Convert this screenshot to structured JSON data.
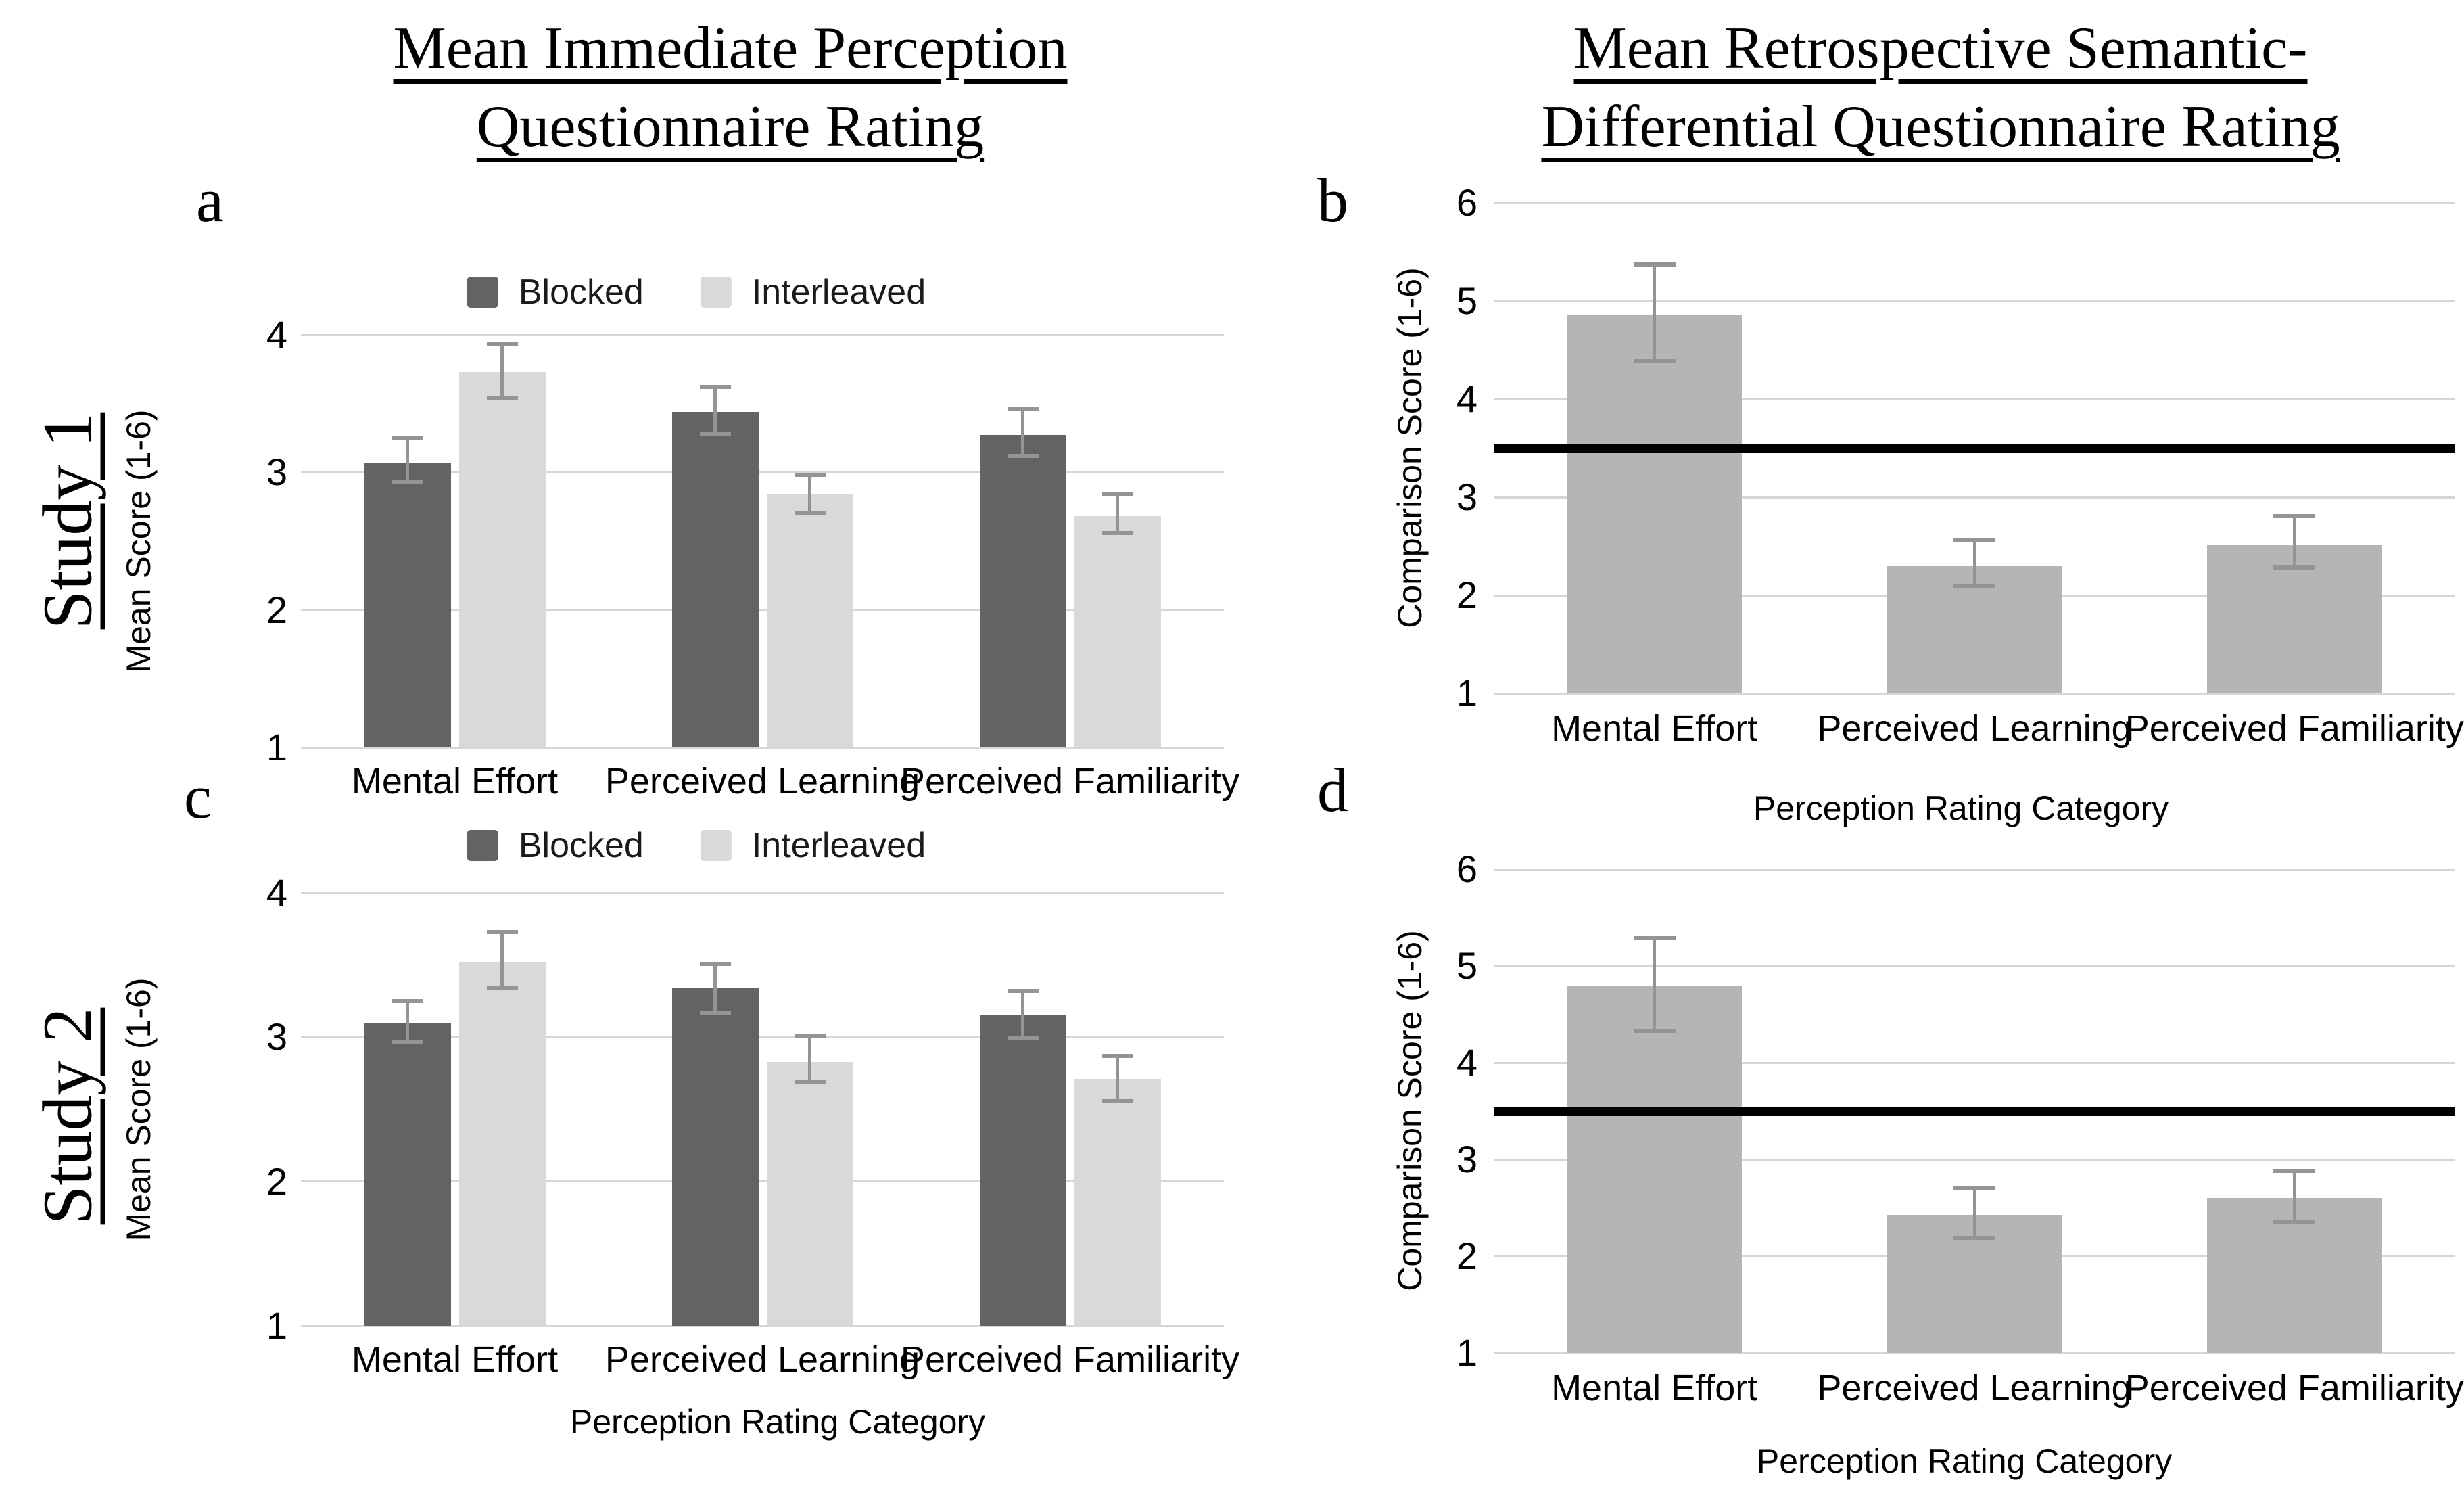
{
  "figure": {
    "background": "#ffffff",
    "column_titles": {
      "left": {
        "line1": "Mean Immediate Perception",
        "line2": "Questionnaire Rating"
      },
      "right": {
        "line1": "Mean Retrospective Semantic-",
        "line2": "Differential Questionnaire Rating"
      }
    },
    "row_labels": {
      "study1": "Study 1",
      "study2": "Study 2"
    },
    "panel_letters": {
      "a": "a",
      "b": "b",
      "c": "c",
      "d": "d"
    }
  },
  "colors": {
    "blocked": "#636363",
    "interleaved": "#d9d9d9",
    "single_bar": "#b5b5b5",
    "error_bar": "#949494",
    "gridline": "#d6d6d6",
    "reference_line": "#000000",
    "text": "#000000"
  },
  "chart_data": [
    {
      "panel": "a",
      "study": "Study 1",
      "type": "bar",
      "title": "Mean Immediate Perception Questionnaire Rating",
      "categories": [
        "Mental Effort",
        "Perceived Learning",
        "Perceived Familiarity"
      ],
      "series": [
        {
          "name": "Blocked",
          "color_key": "blocked",
          "values": [
            3.07,
            3.44,
            3.27
          ],
          "err_low": [
            2.93,
            3.28,
            3.12
          ],
          "err_high": [
            3.25,
            3.62,
            3.46
          ]
        },
        {
          "name": "Interleaved",
          "color_key": "interleaved",
          "values": [
            3.73,
            2.84,
            2.68
          ],
          "err_low": [
            3.54,
            2.7,
            2.56
          ],
          "err_high": [
            3.93,
            2.98,
            2.84
          ]
        }
      ],
      "ylabel": "Mean Score (1-6)",
      "xlabel": null,
      "ylim": [
        1,
        4
      ],
      "yticks": [
        1,
        2,
        3,
        4
      ],
      "grid": true,
      "legend_position": "top",
      "reference_line": null
    },
    {
      "panel": "b",
      "study": "Study 1",
      "type": "bar",
      "title": "Mean Retrospective Semantic-Differential Questionnaire Rating",
      "categories": [
        "Mental Effort",
        "Perceived Learning",
        "Perceived Familiarity"
      ],
      "series": [
        {
          "name": null,
          "color_key": "single_bar",
          "values": [
            4.86,
            2.3,
            2.52
          ],
          "err_low": [
            4.39,
            2.09,
            2.28
          ],
          "err_high": [
            5.37,
            2.56,
            2.81
          ]
        }
      ],
      "ylabel": "Comparison Score (1-6)",
      "xlabel": "Perception Rating Category",
      "ylim": [
        1,
        6
      ],
      "yticks": [
        1,
        2,
        3,
        4,
        5,
        6
      ],
      "grid": true,
      "legend_position": null,
      "reference_line": 3.5
    },
    {
      "panel": "c",
      "study": "Study 2",
      "type": "bar",
      "title": "Mean Immediate Perception Questionnaire Rating",
      "categories": [
        "Mental Effort",
        "Perceived Learning",
        "Perceived Familiarity"
      ],
      "series": [
        {
          "name": "Blocked",
          "color_key": "blocked",
          "values": [
            3.1,
            3.34,
            3.15
          ],
          "err_low": [
            2.97,
            3.17,
            2.99
          ],
          "err_high": [
            3.25,
            3.51,
            3.32
          ]
        },
        {
          "name": "Interleaved",
          "color_key": "interleaved",
          "values": [
            3.52,
            2.83,
            2.71
          ],
          "err_low": [
            3.34,
            2.69,
            2.56
          ],
          "err_high": [
            3.73,
            3.01,
            2.87
          ]
        }
      ],
      "ylabel": "Mean Score (1-6)",
      "xlabel": "Perception Rating Category",
      "ylim": [
        1,
        4
      ],
      "yticks": [
        1,
        2,
        3,
        4
      ],
      "grid": true,
      "legend_position": "top",
      "reference_line": null
    },
    {
      "panel": "d",
      "study": "Study 2",
      "type": "bar",
      "title": "Mean Retrospective Semantic-Differential Questionnaire Rating",
      "categories": [
        "Mental Effort",
        "Perceived Learning",
        "Perceived Familiarity"
      ],
      "series": [
        {
          "name": null,
          "color_key": "single_bar",
          "values": [
            4.8,
            2.43,
            2.6
          ],
          "err_low": [
            4.33,
            2.19,
            2.35
          ],
          "err_high": [
            5.29,
            2.7,
            2.88
          ]
        }
      ],
      "ylabel": "Comparison Score (1-6)",
      "xlabel": "Perception Rating Category",
      "ylim": [
        1,
        6
      ],
      "yticks": [
        1,
        2,
        3,
        4,
        5,
        6
      ],
      "grid": true,
      "legend_position": null,
      "reference_line": 3.5
    }
  ]
}
